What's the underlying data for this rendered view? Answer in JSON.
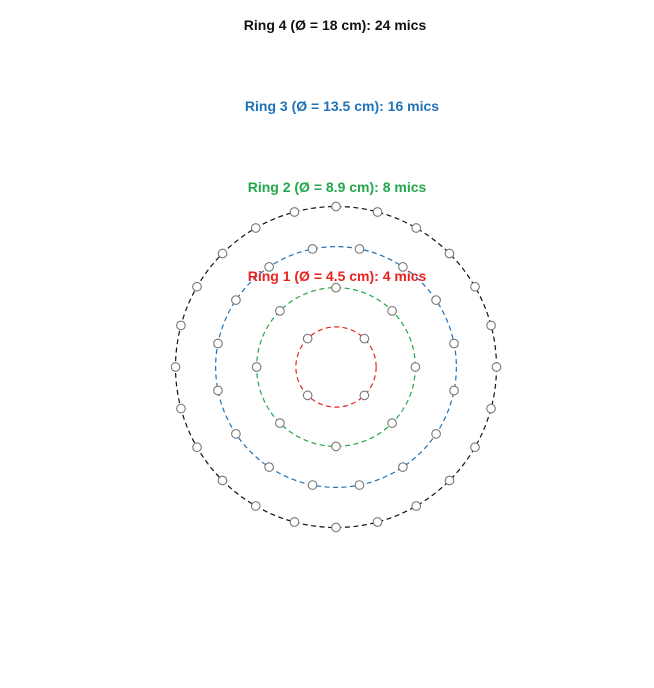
{
  "title": "",
  "rings": [
    {
      "label": "Ring 1 (Ø = 4.5 cm): 4 mics",
      "diameter_cm": 4.5,
      "mic_count": 4,
      "color": "#e8231f",
      "first_mic_angle_deg": 45
    },
    {
      "label": "Ring 2 (Ø = 8.9 cm): 8 mics",
      "diameter_cm": 8.9,
      "mic_count": 8,
      "color": "#21a84a",
      "first_mic_angle_deg": 0
    },
    {
      "label": "Ring 3 (Ø = 13.5 cm): 16 mics",
      "diameter_cm": 13.5,
      "mic_count": 16,
      "color": "#1f72b8",
      "first_mic_angle_deg": 11.25
    },
    {
      "label": "Ring 4 (Ø = 18 cm): 24 mics",
      "diameter_cm": 18,
      "mic_count": 24,
      "color": "#111111",
      "first_mic_angle_deg": 0
    }
  ],
  "mic_marker": {
    "stroke": "#777777",
    "fill": "#ffffff"
  }
}
